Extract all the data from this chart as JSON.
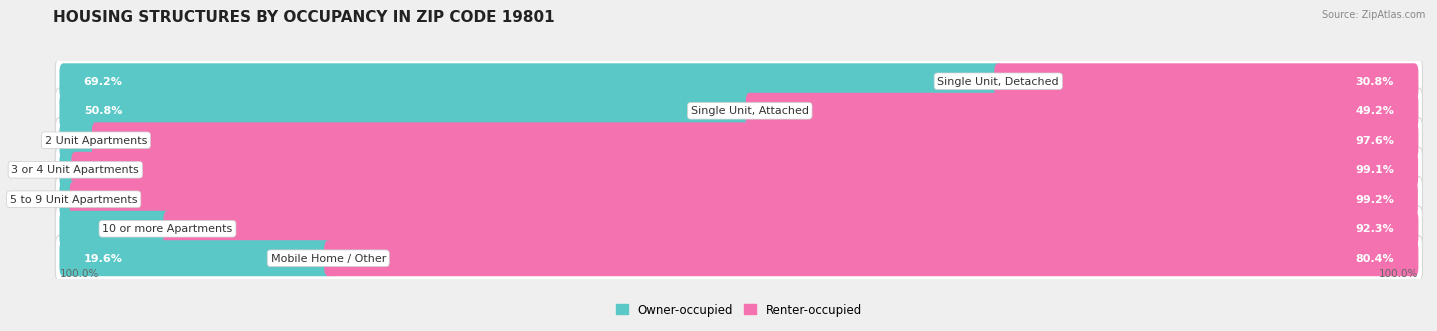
{
  "title": "HOUSING STRUCTURES BY OCCUPANCY IN ZIP CODE 19801",
  "source": "Source: ZipAtlas.com",
  "categories": [
    "Single Unit, Detached",
    "Single Unit, Attached",
    "2 Unit Apartments",
    "3 or 4 Unit Apartments",
    "5 to 9 Unit Apartments",
    "10 or more Apartments",
    "Mobile Home / Other"
  ],
  "owner_pct": [
    69.2,
    50.8,
    2.4,
    0.88,
    0.76,
    7.7,
    19.6
  ],
  "renter_pct": [
    30.8,
    49.2,
    97.6,
    99.1,
    99.2,
    92.3,
    80.4
  ],
  "owner_color": "#5bc8c8",
  "renter_color": "#f472b0",
  "bg_color": "#efefef",
  "row_bg_color": "#ffffff",
  "title_fontsize": 11,
  "label_fontsize": 8,
  "pct_fontsize": 8,
  "axis_label_fontsize": 7.5,
  "legend_fontsize": 8.5,
  "owner_label_color": "#ffffff",
  "renter_label_color": "#ffffff",
  "outside_label_color": "#555555"
}
